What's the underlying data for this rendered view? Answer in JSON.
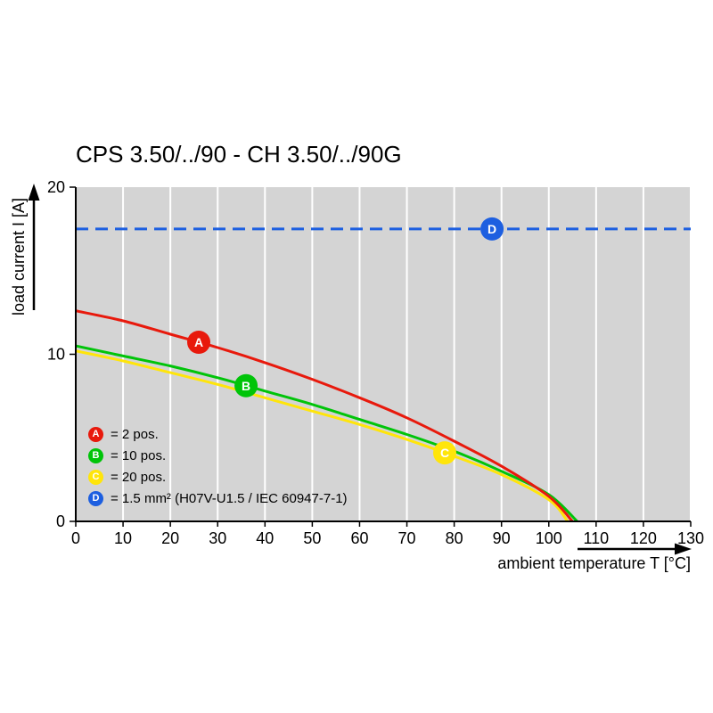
{
  "chart_data": {
    "type": "line",
    "title": "CPS 3.50/../90 - CH 3.50/../90G",
    "xlabel": "ambient temperature T [°C]",
    "ylabel": "load current I [A]",
    "xlim": [
      0,
      130
    ],
    "ylim": [
      0,
      20
    ],
    "x_ticks": [
      0,
      10,
      20,
      30,
      40,
      50,
      60,
      70,
      80,
      90,
      100,
      110,
      120,
      130
    ],
    "y_ticks": [
      0,
      10,
      20
    ],
    "plot_bg": "#d4d4d4",
    "grid_color": "#ffffff",
    "axis_color": "#000000",
    "grid": "vertical gridlines every 10 °C on gray plot background",
    "legend_position": "inside bottom-left",
    "series": [
      {
        "id": "A",
        "legend": "= 2 pos.",
        "color": "#e8190c",
        "line_style": "solid",
        "marker_at": 26,
        "x": [
          0,
          10,
          20,
          30,
          40,
          50,
          60,
          70,
          80,
          90,
          100,
          105
        ],
        "y": [
          12.6,
          12.0,
          11.2,
          10.4,
          9.5,
          8.5,
          7.4,
          6.2,
          4.8,
          3.3,
          1.5,
          0
        ]
      },
      {
        "id": "B",
        "legend": "= 10 pos.",
        "color": "#00c409",
        "line_style": "solid",
        "marker_at": 36,
        "x": [
          0,
          10,
          20,
          30,
          40,
          50,
          60,
          70,
          80,
          90,
          100,
          106
        ],
        "y": [
          10.5,
          9.9,
          9.3,
          8.6,
          7.8,
          7.0,
          6.1,
          5.2,
          4.2,
          3.0,
          1.6,
          0
        ]
      },
      {
        "id": "C",
        "legend": "= 20 pos.",
        "color": "#ffe50a",
        "line_style": "solid",
        "marker_at": 78,
        "x": [
          0,
          10,
          20,
          30,
          40,
          50,
          60,
          70,
          80,
          90,
          100,
          104
        ],
        "y": [
          10.2,
          9.6,
          8.9,
          8.2,
          7.4,
          6.6,
          5.8,
          4.9,
          3.9,
          2.8,
          1.3,
          0
        ]
      },
      {
        "id": "D",
        "legend": "= 1.5 mm² (H07V-U1.5 / IEC 60947-7-1)",
        "color": "#1d5fe0",
        "line_style": "dashed",
        "marker_at": 88,
        "x": [
          0,
          130
        ],
        "y": [
          17.5,
          17.5
        ]
      }
    ]
  }
}
